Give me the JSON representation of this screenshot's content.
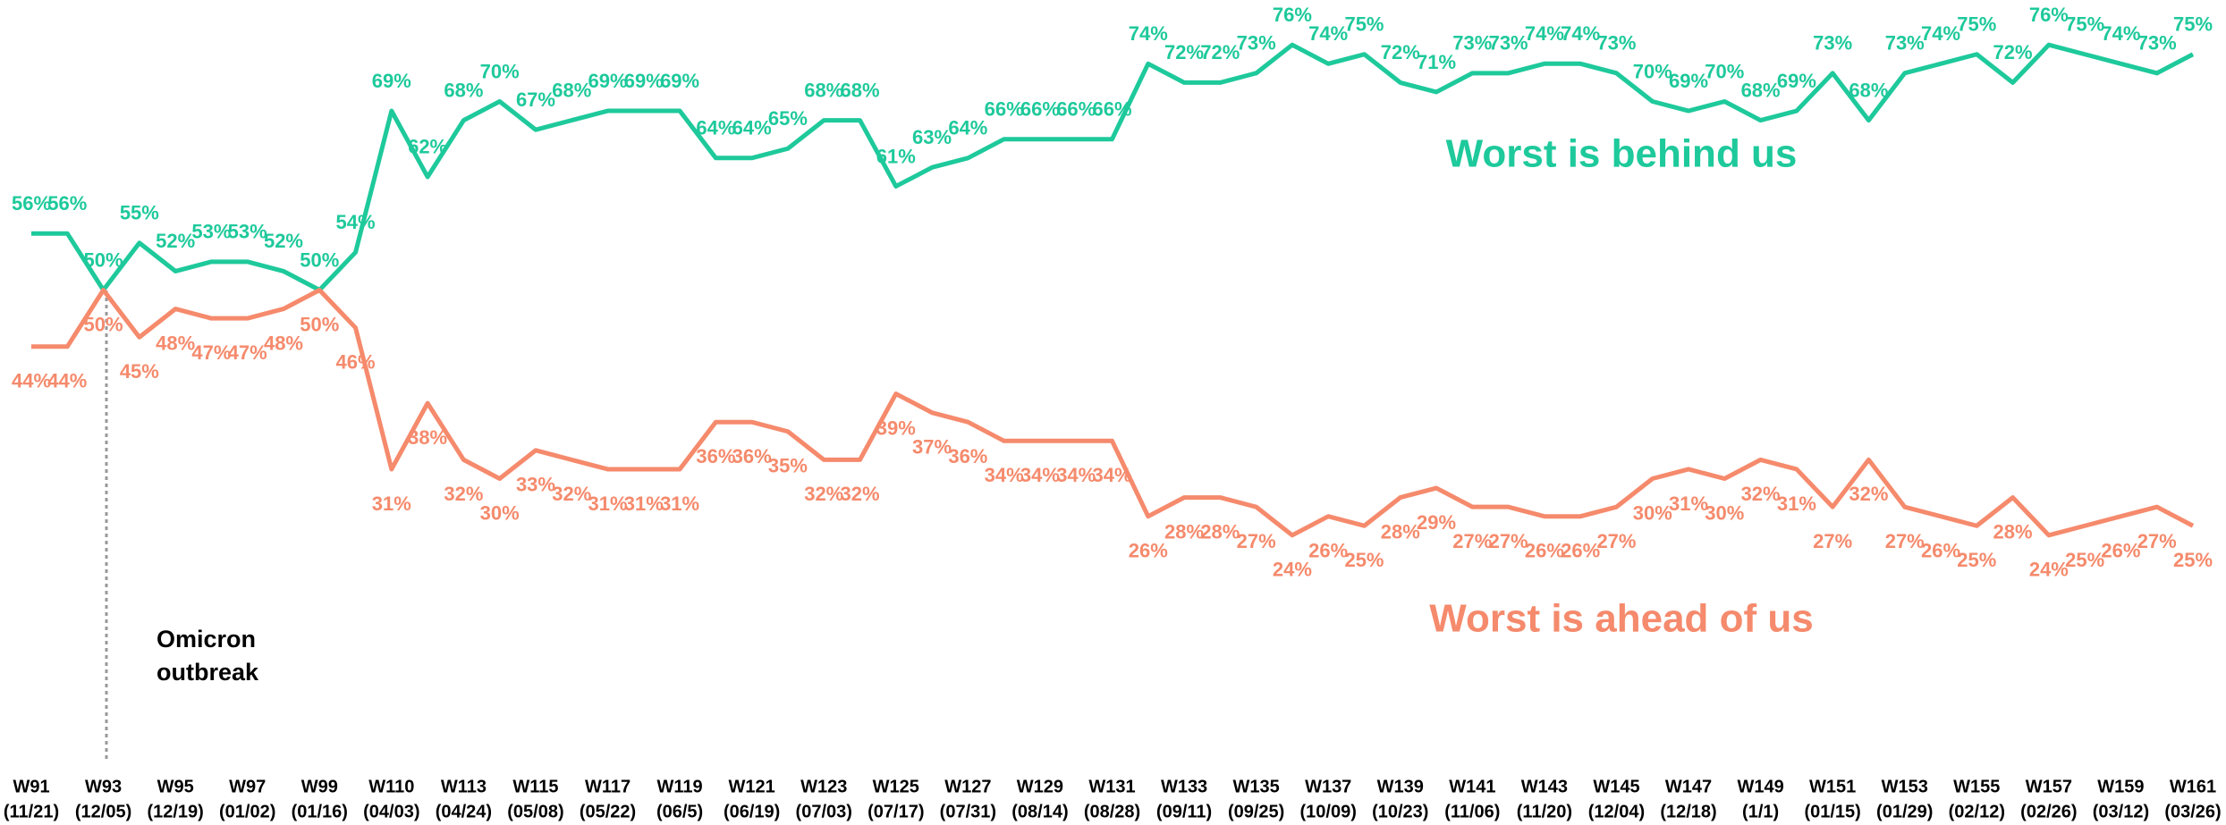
{
  "chart_data": {
    "type": "line",
    "categories": [
      "W91",
      null,
      "W93",
      null,
      "W95",
      null,
      "W97",
      null,
      "W99",
      null,
      "W110",
      null,
      "W113",
      null,
      "W115",
      null,
      "W117",
      null,
      "W119",
      null,
      "W121",
      null,
      "W123",
      null,
      "W125",
      null,
      "W127",
      null,
      "W129",
      null,
      "W131",
      null,
      "W133",
      null,
      "W135",
      null,
      "W137",
      null,
      "W139",
      null,
      "W141",
      null,
      "W143",
      null,
      "W145",
      null,
      "W147",
      null,
      "W149",
      null,
      "W151",
      null,
      "W153",
      null,
      "W155",
      null,
      "W157",
      null,
      "W159",
      null,
      "W161"
    ],
    "category_dates": [
      "(11/21)",
      null,
      "(12/05)",
      null,
      "(12/19)",
      null,
      "(01/02)",
      null,
      "(01/16)",
      null,
      "(04/03)",
      null,
      "(04/24)",
      null,
      "(05/08)",
      null,
      "(05/22)",
      null,
      "(06/5)",
      null,
      "(06/19)",
      null,
      "(07/03)",
      null,
      "(07/17)",
      null,
      "(07/31)",
      null,
      "(08/14)",
      null,
      "(08/28)",
      null,
      "(09/11)",
      null,
      "(09/25)",
      null,
      "(10/09)",
      null,
      "(10/23)",
      null,
      "(11/06)",
      null,
      "(11/20)",
      null,
      "(12/04)",
      null,
      "(12/18)",
      null,
      "(1/1)",
      null,
      "(01/15)",
      null,
      "(01/29)",
      null,
      "(02/12)",
      null,
      "(02/26)",
      null,
      "(03/12)",
      null,
      "(03/26)"
    ],
    "series": [
      {
        "name": "Worst is behind us",
        "color": "#1ec99b",
        "values": [
          56,
          56,
          50,
          55,
          52,
          53,
          53,
          52,
          50,
          54,
          69,
          62,
          68,
          70,
          67,
          68,
          69,
          69,
          69,
          64,
          64,
          65,
          68,
          68,
          61,
          63,
          64,
          66,
          66,
          66,
          66,
          74,
          72,
          72,
          73,
          76,
          74,
          75,
          72,
          71,
          73,
          73,
          74,
          74,
          73,
          70,
          69,
          70,
          68,
          69,
          73,
          68,
          73,
          74,
          75,
          72,
          76,
          75,
          74,
          73,
          75
        ],
        "value_labels": [
          "56%",
          "56%",
          "50%",
          "55%",
          "52%",
          "53%",
          "53%",
          "52%",
          "50%",
          "54%",
          "69%",
          "62%",
          "68%",
          "70%",
          "67%",
          "68%",
          "69%",
          "69%",
          "69%",
          "64%",
          "64%",
          "65%",
          "68%",
          "68%",
          "61%",
          "63%",
          "64%",
          "66%",
          "66%",
          "66%",
          "66%",
          "74%",
          "72%",
          "72%",
          "73%",
          "76%",
          "74%",
          "75%",
          "72%",
          "71%",
          "73%",
          "73%",
          "74%",
          "74%",
          "73%",
          "70%",
          "69%",
          "70%",
          "68%",
          "69%",
          "73%",
          "68%",
          "73%",
          "74%",
          "75%",
          "72%",
          "76%",
          "75%",
          "74%",
          "73%",
          "75%"
        ]
      },
      {
        "name": "Worst is ahead of us",
        "color": "#f58a6c",
        "values": [
          44,
          44,
          50,
          45,
          48,
          47,
          47,
          48,
          50,
          46,
          31,
          38,
          32,
          30,
          33,
          32,
          31,
          31,
          31,
          36,
          36,
          35,
          32,
          32,
          39,
          37,
          36,
          34,
          34,
          34,
          34,
          26,
          28,
          28,
          27,
          24,
          26,
          25,
          28,
          29,
          27,
          27,
          26,
          26,
          27,
          30,
          31,
          30,
          32,
          31,
          27,
          32,
          27,
          26,
          25,
          28,
          24,
          25,
          26,
          27,
          25
        ],
        "value_labels": [
          "44%",
          "44%",
          "50%",
          "45%",
          "48%",
          "47%",
          "47%",
          "48%",
          "50%",
          "46%",
          "31%",
          "38%",
          "32%",
          "30%",
          "33%",
          "32%",
          "31%",
          "31%",
          "31%",
          "36%",
          "36%",
          "35%",
          "32%",
          "32%",
          "39%",
          "37%",
          "36%",
          "34%",
          "34%",
          "34%",
          "34%",
          "26%",
          "28%",
          "28%",
          "27%",
          "24%",
          "26%",
          "25%",
          "28%",
          "29%",
          "27%",
          "27%",
          "26%",
          "26%",
          "27%",
          "30%",
          "31%",
          "30%",
          "32%",
          "31%",
          "27%",
          "32%",
          "27%",
          "26%",
          "25%",
          "28%",
          "24%",
          "25%",
          "26%",
          "27%",
          "25%"
        ]
      }
    ],
    "annotation_lines": [
      "Omicron",
      "outbreak"
    ],
    "ylim": [
      0,
      80
    ]
  }
}
